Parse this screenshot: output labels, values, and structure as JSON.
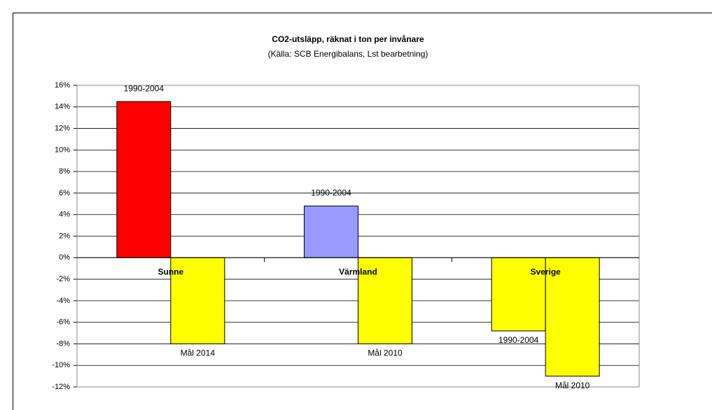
{
  "chart_data": {
    "type": "bar",
    "title": "CO2-utsläpp, räknat i ton per invånare",
    "subtitle": "(Källa: SCB Energibalans, Lst bearbetning)",
    "categories": [
      "Sunne",
      "Värmland",
      "Sverige"
    ],
    "series": [
      {
        "colors": [
          "#ff0000",
          "#9999ff",
          "#ffff00"
        ],
        "values": [
          14.5,
          4.8,
          -6.8
        ],
        "labels": [
          "1990-2004",
          "1990-2004",
          "1990-2004"
        ]
      },
      {
        "color": "#ffff00",
        "values": [
          -8,
          -8,
          -11
        ],
        "labels": [
          "Mål 2014",
          "Mål 2010",
          "Mål 2010"
        ]
      }
    ],
    "ylim": [
      -12,
      16
    ],
    "yticks": [
      {
        "value": -12,
        "label": "-12%"
      },
      {
        "value": -10,
        "label": "-10%"
      },
      {
        "value": -8,
        "label": "-8%"
      },
      {
        "value": -6,
        "label": "-6%"
      },
      {
        "value": -4,
        "label": "-4%"
      },
      {
        "value": -2,
        "label": "-2%"
      },
      {
        "value": 0,
        "label": "0%"
      },
      {
        "value": 2,
        "label": "2%"
      },
      {
        "value": 4,
        "label": "4%"
      },
      {
        "value": 6,
        "label": "6%"
      },
      {
        "value": 8,
        "label": "8%"
      },
      {
        "value": 10,
        "label": "10%"
      },
      {
        "value": 12,
        "label": "12%"
      },
      {
        "value": 14,
        "label": "14%"
      },
      {
        "value": 16,
        "label": "16%"
      }
    ],
    "grid": true
  }
}
